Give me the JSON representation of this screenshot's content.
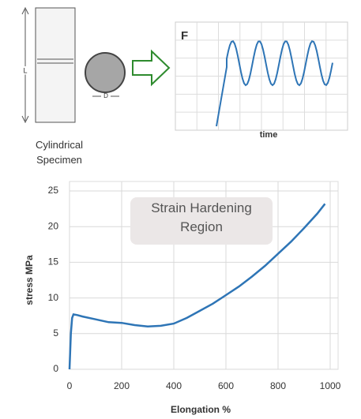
{
  "diagram": {
    "length_label": "L",
    "diameter_label": "D",
    "force_label": "F",
    "time_label": "time",
    "specimen_label": "Cylindrical Specimen"
  },
  "chart_data": {
    "type": "line",
    "x": [
      0,
      5,
      10,
      15,
      30,
      50,
      100,
      150,
      200,
      250,
      300,
      350,
      400,
      450,
      500,
      550,
      600,
      650,
      700,
      750,
      800,
      850,
      900,
      950,
      980
    ],
    "values": [
      0,
      5,
      7.2,
      7.7,
      7.6,
      7.4,
      7.0,
      6.6,
      6.5,
      6.2,
      6.0,
      6.1,
      6.4,
      7.2,
      8.2,
      9.2,
      10.4,
      11.6,
      13.0,
      14.5,
      16.2,
      17.9,
      19.8,
      21.8,
      23.2
    ],
    "color": "#2e75b6",
    "xlabel": "Elongation %",
    "ylabel": "stress MPa",
    "annotation": "Strain Hardening Region",
    "xlim": [
      0,
      1000
    ],
    "xticks": [
      0,
      200,
      400,
      600,
      800,
      1000
    ],
    "ylim": [
      0,
      25
    ],
    "yticks": [
      0,
      5,
      10,
      15,
      20,
      25
    ],
    "grid": true
  }
}
